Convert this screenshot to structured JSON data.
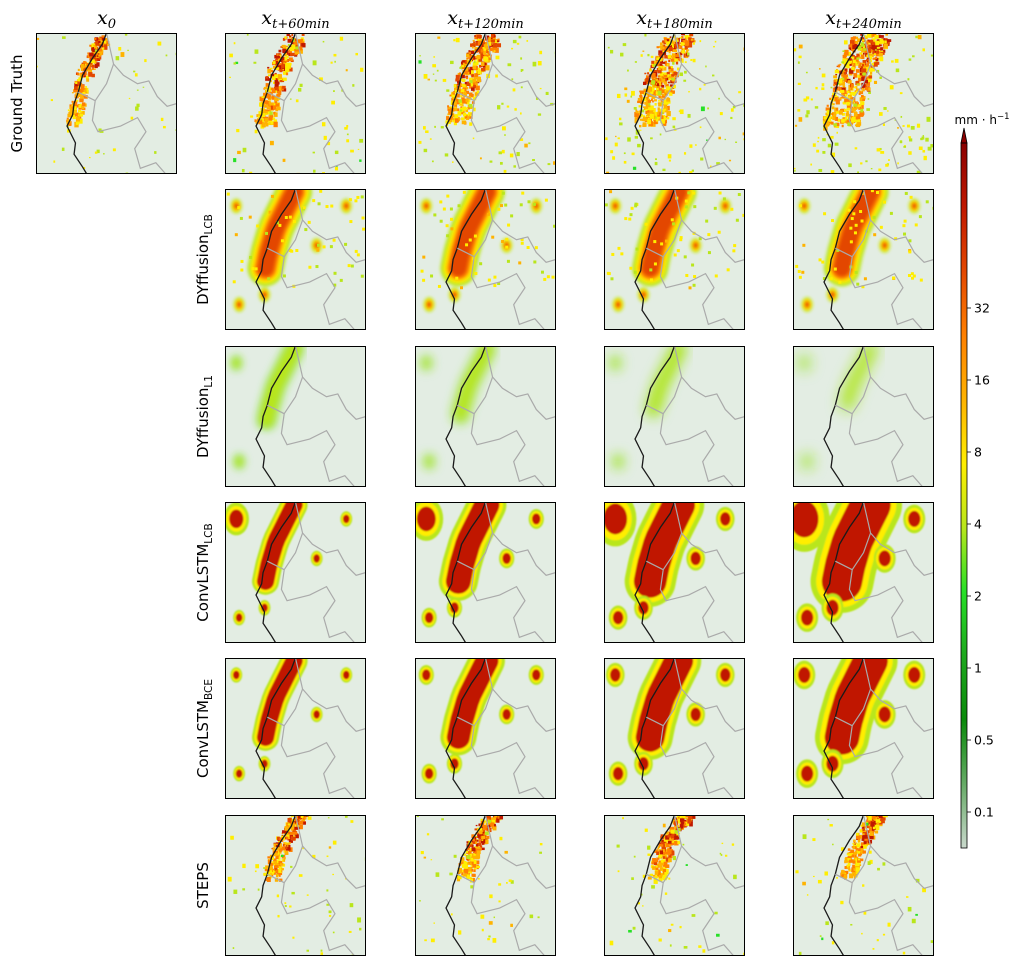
{
  "chart_data": {
    "type": "heatmap",
    "description_columns": "precipitation nowcast panels",
    "columns": [
      {
        "base": "x",
        "sub": "0"
      },
      {
        "base": "x",
        "sub": "t+60min"
      },
      {
        "base": "x",
        "sub": "t+120min"
      },
      {
        "base": "x",
        "sub": "t+180min"
      },
      {
        "base": "x",
        "sub": "t+240min"
      }
    ],
    "rows": [
      {
        "base": "Ground Truth",
        "sub": ""
      },
      {
        "base": "DYffusion",
        "sub": "LCB"
      },
      {
        "base": "DYffusion",
        "sub": "L1"
      },
      {
        "base": "ConvLSTM",
        "sub": "LCB"
      },
      {
        "base": "ConvLSTM",
        "sub": "BCE"
      },
      {
        "base": "STEPS",
        "sub": ""
      }
    ],
    "colorbar": {
      "unit_base": "mm · h",
      "unit_exp": "−1",
      "ticks": [
        "0.1",
        "0.5",
        "1",
        "2",
        "4",
        "8",
        "16",
        "32"
      ],
      "tick_values": [
        0.1,
        0.5,
        1,
        2,
        4,
        8,
        16,
        32
      ],
      "extend": "max",
      "colors": [
        "#c9d8cc",
        "#66aa66",
        "#0a8a0a",
        "#1ea81e",
        "#27e027",
        "#b9e61b",
        "#ffee00",
        "#ffb300",
        "#ff8000",
        "#e34700",
        "#c01800",
        "#8b0000"
      ]
    },
    "background_color": "#e3ede3",
    "coastline_color": "#1a1a1a",
    "border_color": "#aaaaaa"
  }
}
